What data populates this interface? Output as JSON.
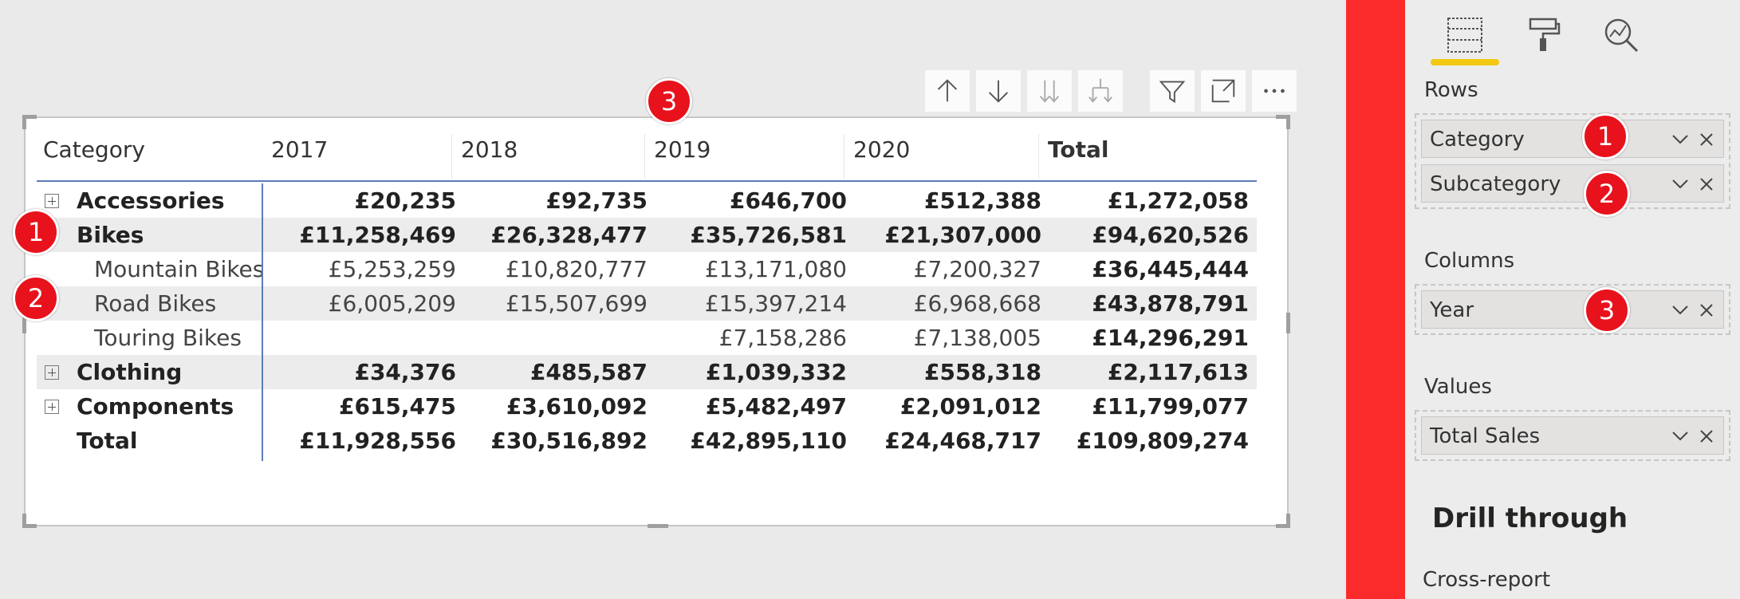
{
  "matrix": {
    "header": {
      "category": "Category",
      "y2017": "2017",
      "y2018": "2018",
      "y2019": "2019",
      "y2020": "2020",
      "total": "Total"
    },
    "rows": [
      {
        "label": "Accessories",
        "v2017": "£20,235",
        "v2018": "£92,735",
        "v2019": "£646,700",
        "v2020": "£512,388",
        "total": "£1,272,058"
      },
      {
        "label": "Bikes",
        "v2017": "£11,258,469",
        "v2018": "£26,328,477",
        "v2019": "£35,726,581",
        "v2020": "£21,307,000",
        "total": "£94,620,526"
      },
      {
        "label": "Mountain Bikes",
        "v2017": "£5,253,259",
        "v2018": "£10,820,777",
        "v2019": "£13,171,080",
        "v2020": "£7,200,327",
        "total": "£36,445,444"
      },
      {
        "label": "Road Bikes",
        "v2017": "£6,005,209",
        "v2018": "£15,507,699",
        "v2019": "£15,397,214",
        "v2020": "£6,968,668",
        "total": "£43,878,791"
      },
      {
        "label": "Touring Bikes",
        "v2017": "",
        "v2018": "",
        "v2019": "£7,158,286",
        "v2020": "£7,138,005",
        "total": "£14,296,291"
      },
      {
        "label": "Clothing",
        "v2017": "£34,376",
        "v2018": "£485,587",
        "v2019": "£1,039,332",
        "v2020": "£558,318",
        "total": "£2,117,613"
      },
      {
        "label": "Components",
        "v2017": "£615,475",
        "v2018": "£3,610,092",
        "v2019": "£5,482,497",
        "v2020": "£2,091,012",
        "total": "£11,799,077"
      },
      {
        "label": "Total",
        "v2017": "£11,928,556",
        "v2018": "£30,516,892",
        "v2019": "£42,895,110",
        "v2020": "£24,468,717",
        "total": "£109,809,274"
      }
    ]
  },
  "toolbar": {
    "icons": [
      "arrow-up-icon",
      "arrow-down-icon",
      "double-arrow-down-icon",
      "expand-hierarchy-icon",
      "filter-icon",
      "focus-mode-icon",
      "more-options-icon"
    ],
    "more_label": "···"
  },
  "callouts": {
    "one": "1",
    "two": "2",
    "three": "3"
  },
  "panel": {
    "rows_label": "Rows",
    "rows_fields": [
      "Category",
      "Subcategory"
    ],
    "columns_label": "Columns",
    "columns_fields": [
      "Year"
    ],
    "values_label": "Values",
    "values_fields": [
      "Total Sales"
    ],
    "drill_through": "Drill through",
    "cross_report": "Cross-report"
  },
  "colors": {
    "accent_yellow": "#f2c811",
    "badge_red": "#e8121c",
    "strip_red": "#fb2b2b",
    "header_line": "#5b7db8"
  }
}
